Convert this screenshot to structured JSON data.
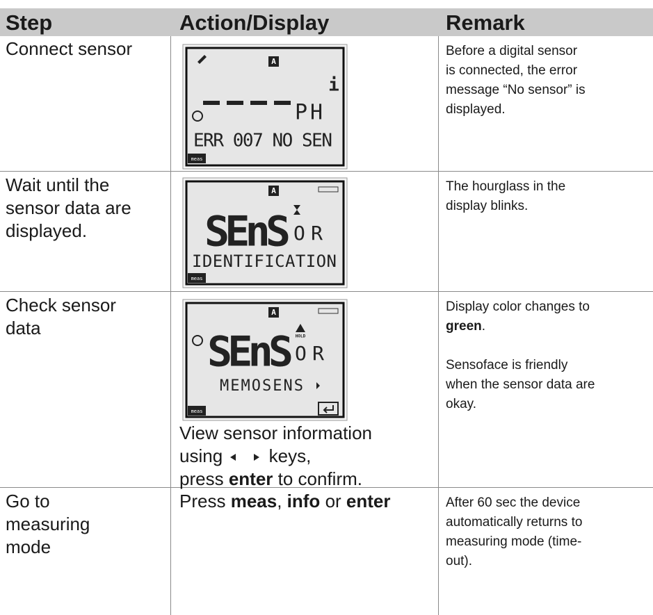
{
  "table": {
    "header": [
      "Step",
      "Action/Display",
      "Remark"
    ],
    "rows": [
      {
        "step": [
          "Connect sensor"
        ],
        "display": {
          "unit": "PH",
          "message": "ERR 007 NO SEN",
          "mode": "meas",
          "channel": "A",
          "info": "i"
        },
        "remark": [
          "Before a digital sensor",
          "is connected, the error",
          "message “No sensor” is",
          "displayed."
        ]
      },
      {
        "step": [
          "Wait until the",
          "sensor data are",
          "displayed."
        ],
        "display": {
          "main": "SEnS",
          "suffix": "OR",
          "message": "IDENTIFICATION",
          "mode": "meas",
          "channel": "A"
        },
        "remark": [
          "The hourglass in the",
          "display blinks."
        ]
      },
      {
        "step": [
          "Check sensor",
          "data"
        ],
        "display": {
          "main": "SEnS",
          "suffix": "OR",
          "message": "MEMOSENS",
          "mode": "meas",
          "channel": "A",
          "hold": "HOLD"
        },
        "action": {
          "line1": "View sensor information",
          "line2a": "using",
          "line2b": "keys,",
          "line3a": "press",
          "line3b": "enter",
          "line3c": "to confirm."
        },
        "remark": {
          "p1a": "Display color changes to",
          "p1b": "green",
          "p1c": ".",
          "p2": [
            "Sensoface is friendly",
            "when the sensor data are",
            "okay."
          ]
        }
      },
      {
        "step": [
          "Go to",
          "measuring",
          "mode"
        ],
        "action": {
          "a": "Press",
          "b": "meas",
          "c": ",",
          "d": "info",
          "e": "or",
          "f": "enter"
        },
        "remark": [
          "After 60 sec the device",
          "automatically returns to",
          "measuring mode (time-",
          "out)."
        ]
      }
    ]
  }
}
